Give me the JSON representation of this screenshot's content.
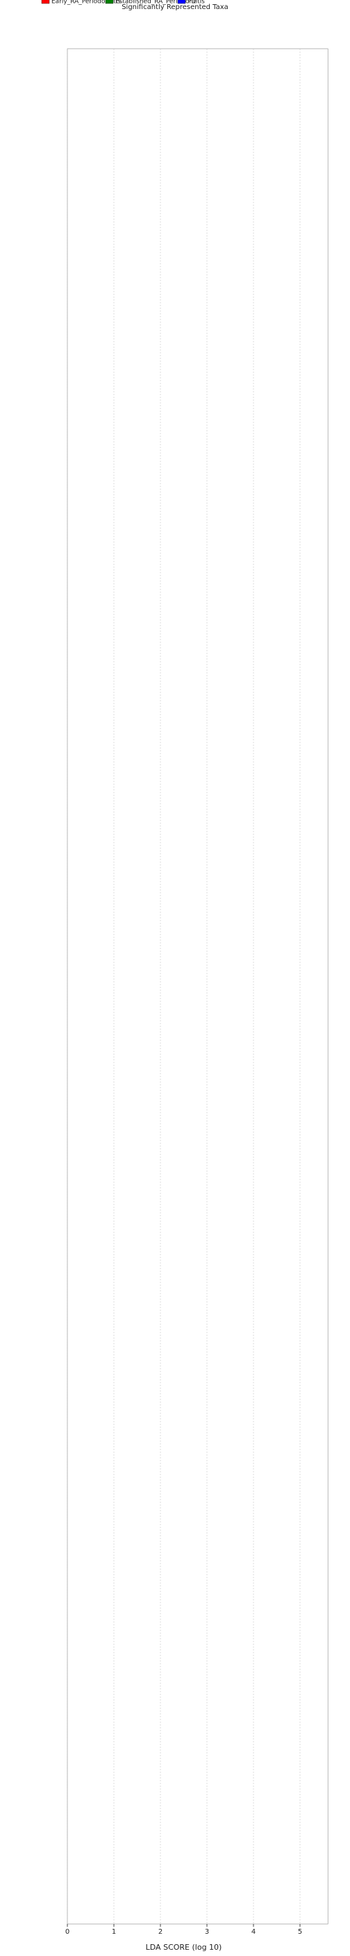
{
  "chart_data": {
    "type": "bar",
    "orientation": "horizontal",
    "title": "Significantly Represented Taxa",
    "x_label": "LDA SCORE (log 10)",
    "xlim": [
      0,
      5.6
    ],
    "xticks": [
      0,
      1,
      2,
      3,
      4,
      5
    ],
    "grid": true,
    "series": [
      {
        "name": "Early_RA_Periodontitis",
        "color": "#ff0000",
        "categories": [],
        "values": []
      },
      {
        "name": "Established_RA_Periodontitis",
        "color": "#008000",
        "categories": [],
        "values": []
      },
      {
        "name": "PD",
        "color": "#0000ff",
        "categories": [],
        "values": []
      }
    ]
  }
}
